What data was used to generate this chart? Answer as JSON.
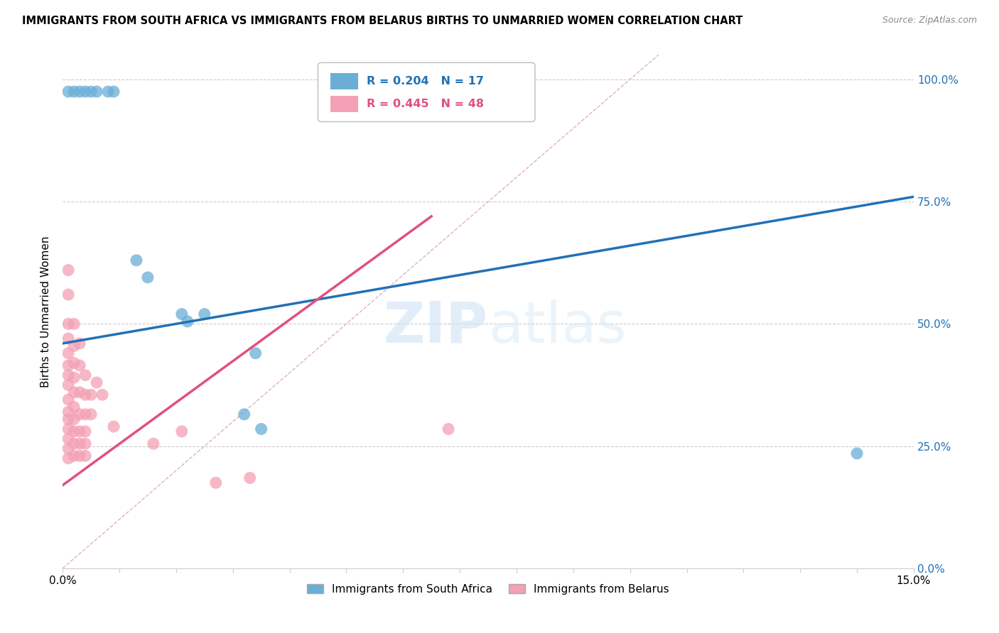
{
  "title": "IMMIGRANTS FROM SOUTH AFRICA VS IMMIGRANTS FROM BELARUS BIRTHS TO UNMARRIED WOMEN CORRELATION CHART",
  "source": "Source: ZipAtlas.com",
  "ylabel": "Births to Unmarried Women",
  "xlim": [
    0.0,
    0.15
  ],
  "ylim": [
    0.0,
    1.05
  ],
  "ytick_values": [
    0.0,
    0.25,
    0.5,
    0.75,
    1.0
  ],
  "watermark_zip": "ZIP",
  "watermark_atlas": "atlas",
  "legend_label_blue": "Immigrants from South Africa",
  "legend_label_pink": "Immigrants from Belarus",
  "R_blue": 0.204,
  "N_blue": 17,
  "R_pink": 0.445,
  "N_pink": 48,
  "blue_color": "#6aaed6",
  "pink_color": "#f4a0b5",
  "blue_line_color": "#2171b5",
  "pink_line_color": "#e05080",
  "diagonal_color": "#cccccc",
  "blue_scatter": [
    [
      0.001,
      0.975
    ],
    [
      0.002,
      0.975
    ],
    [
      0.003,
      0.975
    ],
    [
      0.004,
      0.975
    ],
    [
      0.005,
      0.975
    ],
    [
      0.006,
      0.975
    ],
    [
      0.008,
      0.975
    ],
    [
      0.009,
      0.975
    ],
    [
      0.013,
      0.63
    ],
    [
      0.015,
      0.595
    ],
    [
      0.021,
      0.52
    ],
    [
      0.022,
      0.505
    ],
    [
      0.025,
      0.52
    ],
    [
      0.034,
      0.44
    ],
    [
      0.032,
      0.315
    ],
    [
      0.035,
      0.285
    ],
    [
      0.14,
      0.235
    ]
  ],
  "pink_scatter": [
    [
      0.001,
      0.61
    ],
    [
      0.001,
      0.56
    ],
    [
      0.001,
      0.5
    ],
    [
      0.001,
      0.47
    ],
    [
      0.001,
      0.44
    ],
    [
      0.001,
      0.415
    ],
    [
      0.001,
      0.395
    ],
    [
      0.001,
      0.375
    ],
    [
      0.001,
      0.345
    ],
    [
      0.001,
      0.32
    ],
    [
      0.001,
      0.305
    ],
    [
      0.001,
      0.285
    ],
    [
      0.001,
      0.265
    ],
    [
      0.001,
      0.245
    ],
    [
      0.001,
      0.225
    ],
    [
      0.002,
      0.5
    ],
    [
      0.002,
      0.455
    ],
    [
      0.002,
      0.42
    ],
    [
      0.002,
      0.39
    ],
    [
      0.002,
      0.36
    ],
    [
      0.002,
      0.33
    ],
    [
      0.002,
      0.305
    ],
    [
      0.002,
      0.28
    ],
    [
      0.002,
      0.255
    ],
    [
      0.002,
      0.23
    ],
    [
      0.003,
      0.46
    ],
    [
      0.003,
      0.415
    ],
    [
      0.003,
      0.36
    ],
    [
      0.003,
      0.315
    ],
    [
      0.003,
      0.28
    ],
    [
      0.003,
      0.255
    ],
    [
      0.003,
      0.23
    ],
    [
      0.004,
      0.395
    ],
    [
      0.004,
      0.355
    ],
    [
      0.004,
      0.315
    ],
    [
      0.004,
      0.28
    ],
    [
      0.004,
      0.255
    ],
    [
      0.004,
      0.23
    ],
    [
      0.005,
      0.355
    ],
    [
      0.005,
      0.315
    ],
    [
      0.006,
      0.38
    ],
    [
      0.007,
      0.355
    ],
    [
      0.009,
      0.29
    ],
    [
      0.016,
      0.255
    ],
    [
      0.021,
      0.28
    ],
    [
      0.027,
      0.175
    ],
    [
      0.033,
      0.185
    ],
    [
      0.068,
      0.285
    ]
  ],
  "blue_line_x": [
    0.0,
    0.15
  ],
  "blue_line_y": [
    0.46,
    0.76
  ],
  "pink_line_x": [
    0.0,
    0.065
  ],
  "pink_line_y": [
    0.17,
    0.72
  ],
  "diag_line_x": [
    0.0,
    0.105
  ],
  "diag_line_y": [
    0.0,
    1.05
  ]
}
